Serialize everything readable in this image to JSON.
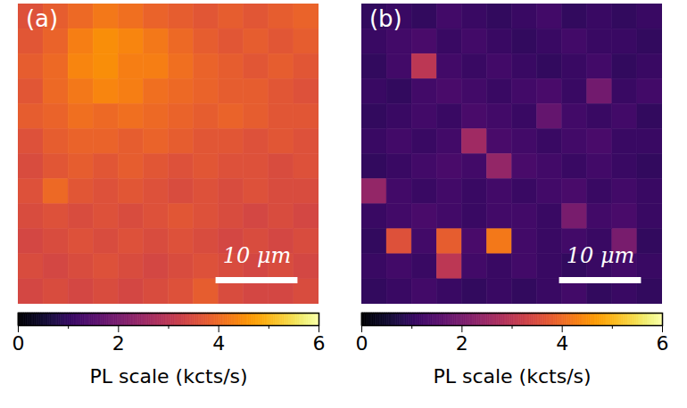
{
  "chart_data": [
    {
      "type": "heatmap",
      "title": "(a)",
      "color": "inferno",
      "tick_labels": false,
      "xlim": [
        0,
        36.7
      ],
      "ylim": [
        0,
        36.7
      ],
      "cells": [
        [
          3.6,
          3.8,
          4.0,
          4.2,
          4.1,
          3.9,
          3.8,
          3.7,
          3.8,
          3.7,
          3.8,
          3.9
        ],
        [
          3.7,
          3.9,
          4.3,
          4.5,
          4.4,
          4.2,
          4.0,
          3.8,
          3.7,
          3.8,
          3.7,
          3.8
        ],
        [
          3.8,
          4.0,
          4.4,
          4.5,
          4.3,
          4.3,
          4.1,
          3.9,
          3.8,
          3.7,
          3.8,
          3.7
        ],
        [
          3.7,
          4.0,
          4.2,
          4.4,
          4.3,
          4.1,
          4.0,
          3.9,
          3.8,
          3.8,
          3.7,
          3.6
        ],
        [
          3.8,
          3.9,
          4.1,
          4.0,
          4.1,
          4.0,
          3.9,
          3.8,
          3.9,
          3.8,
          3.7,
          3.7
        ],
        [
          3.6,
          3.8,
          3.9,
          3.9,
          3.8,
          3.9,
          3.8,
          3.7,
          3.7,
          3.6,
          3.7,
          3.6
        ],
        [
          3.5,
          3.7,
          3.8,
          3.7,
          3.8,
          3.7,
          3.6,
          3.7,
          3.6,
          3.6,
          3.5,
          3.6
        ],
        [
          3.6,
          4.0,
          3.7,
          3.6,
          3.7,
          3.6,
          3.5,
          3.6,
          3.5,
          3.6,
          3.5,
          3.5
        ],
        [
          3.5,
          3.6,
          3.5,
          3.6,
          3.5,
          3.6,
          3.7,
          3.6,
          3.5,
          3.4,
          3.5,
          3.4
        ],
        [
          3.4,
          3.5,
          3.6,
          3.5,
          3.6,
          3.5,
          3.6,
          3.5,
          3.4,
          3.5,
          3.4,
          3.5
        ],
        [
          3.5,
          3.4,
          3.5,
          3.6,
          3.5,
          3.4,
          3.5,
          3.6,
          3.5,
          3.4,
          3.5,
          3.4
        ],
        [
          3.4,
          3.5,
          3.4,
          3.5,
          3.4,
          3.5,
          3.6,
          3.8,
          3.5,
          3.4,
          3.4,
          3.5
        ]
      ],
      "scale_bar": {
        "label": "10 μm",
        "length": 10
      },
      "colorbar": {
        "label": "PL scale (kcts/s)",
        "range": [
          0,
          6
        ],
        "ticks": [
          0,
          2,
          4,
          6
        ],
        "minor_ticks": [
          1,
          3,
          5
        ]
      }
    },
    {
      "type": "heatmap",
      "title": "(b)",
      "color": "inferno",
      "tick_labels": false,
      "xlim": [
        0,
        36.7
      ],
      "ylim": [
        0,
        36.7
      ],
      "cells": [
        [
          1.0,
          1.1,
          1.0,
          1.2,
          1.1,
          1.0,
          1.1,
          1.2,
          1.0,
          1.1,
          1.0,
          1.1
        ],
        [
          1.1,
          1.2,
          1.3,
          1.1,
          1.2,
          1.1,
          1.0,
          1.1,
          1.2,
          1.1,
          1.1,
          1.0
        ],
        [
          1.0,
          1.2,
          3.0,
          1.2,
          1.1,
          1.2,
          1.1,
          1.0,
          1.1,
          1.2,
          1.0,
          1.1
        ],
        [
          1.1,
          1.0,
          1.2,
          1.3,
          1.2,
          1.1,
          1.2,
          1.3,
          1.1,
          1.9,
          1.1,
          1.2
        ],
        [
          1.0,
          1.1,
          1.2,
          1.1,
          1.3,
          1.2,
          1.1,
          1.7,
          1.2,
          1.1,
          1.2,
          1.0
        ],
        [
          1.1,
          1.2,
          1.1,
          1.2,
          2.6,
          1.3,
          1.2,
          1.1,
          1.2,
          1.3,
          1.1,
          1.1
        ],
        [
          1.0,
          1.1,
          1.2,
          1.3,
          1.2,
          2.4,
          1.3,
          1.2,
          1.1,
          1.2,
          1.1,
          1.0
        ],
        [
          2.4,
          1.2,
          1.1,
          1.2,
          1.1,
          1.2,
          1.1,
          1.2,
          1.3,
          1.1,
          1.2,
          1.1
        ],
        [
          1.1,
          1.2,
          1.3,
          1.2,
          1.1,
          1.2,
          1.2,
          1.1,
          2.0,
          1.2,
          1.3,
          1.1
        ],
        [
          1.0,
          3.6,
          1.2,
          3.8,
          1.3,
          4.2,
          1.2,
          1.1,
          1.2,
          1.1,
          2.0,
          1.0
        ],
        [
          1.1,
          1.2,
          1.1,
          3.0,
          1.2,
          1.1,
          1.2,
          1.1,
          1.0,
          1.1,
          1.2,
          1.1
        ],
        [
          1.0,
          1.1,
          1.2,
          1.1,
          1.0,
          1.1,
          1.0,
          1.1,
          1.2,
          1.0,
          1.1,
          1.0
        ]
      ],
      "scale_bar": {
        "label": "10 μm",
        "length": 10
      },
      "colorbar": {
        "label": "PL scale (kcts/s)",
        "range": [
          0,
          6
        ],
        "ticks": [
          0,
          2,
          4,
          6
        ],
        "minor_ticks": [
          1,
          3,
          5
        ]
      }
    }
  ]
}
